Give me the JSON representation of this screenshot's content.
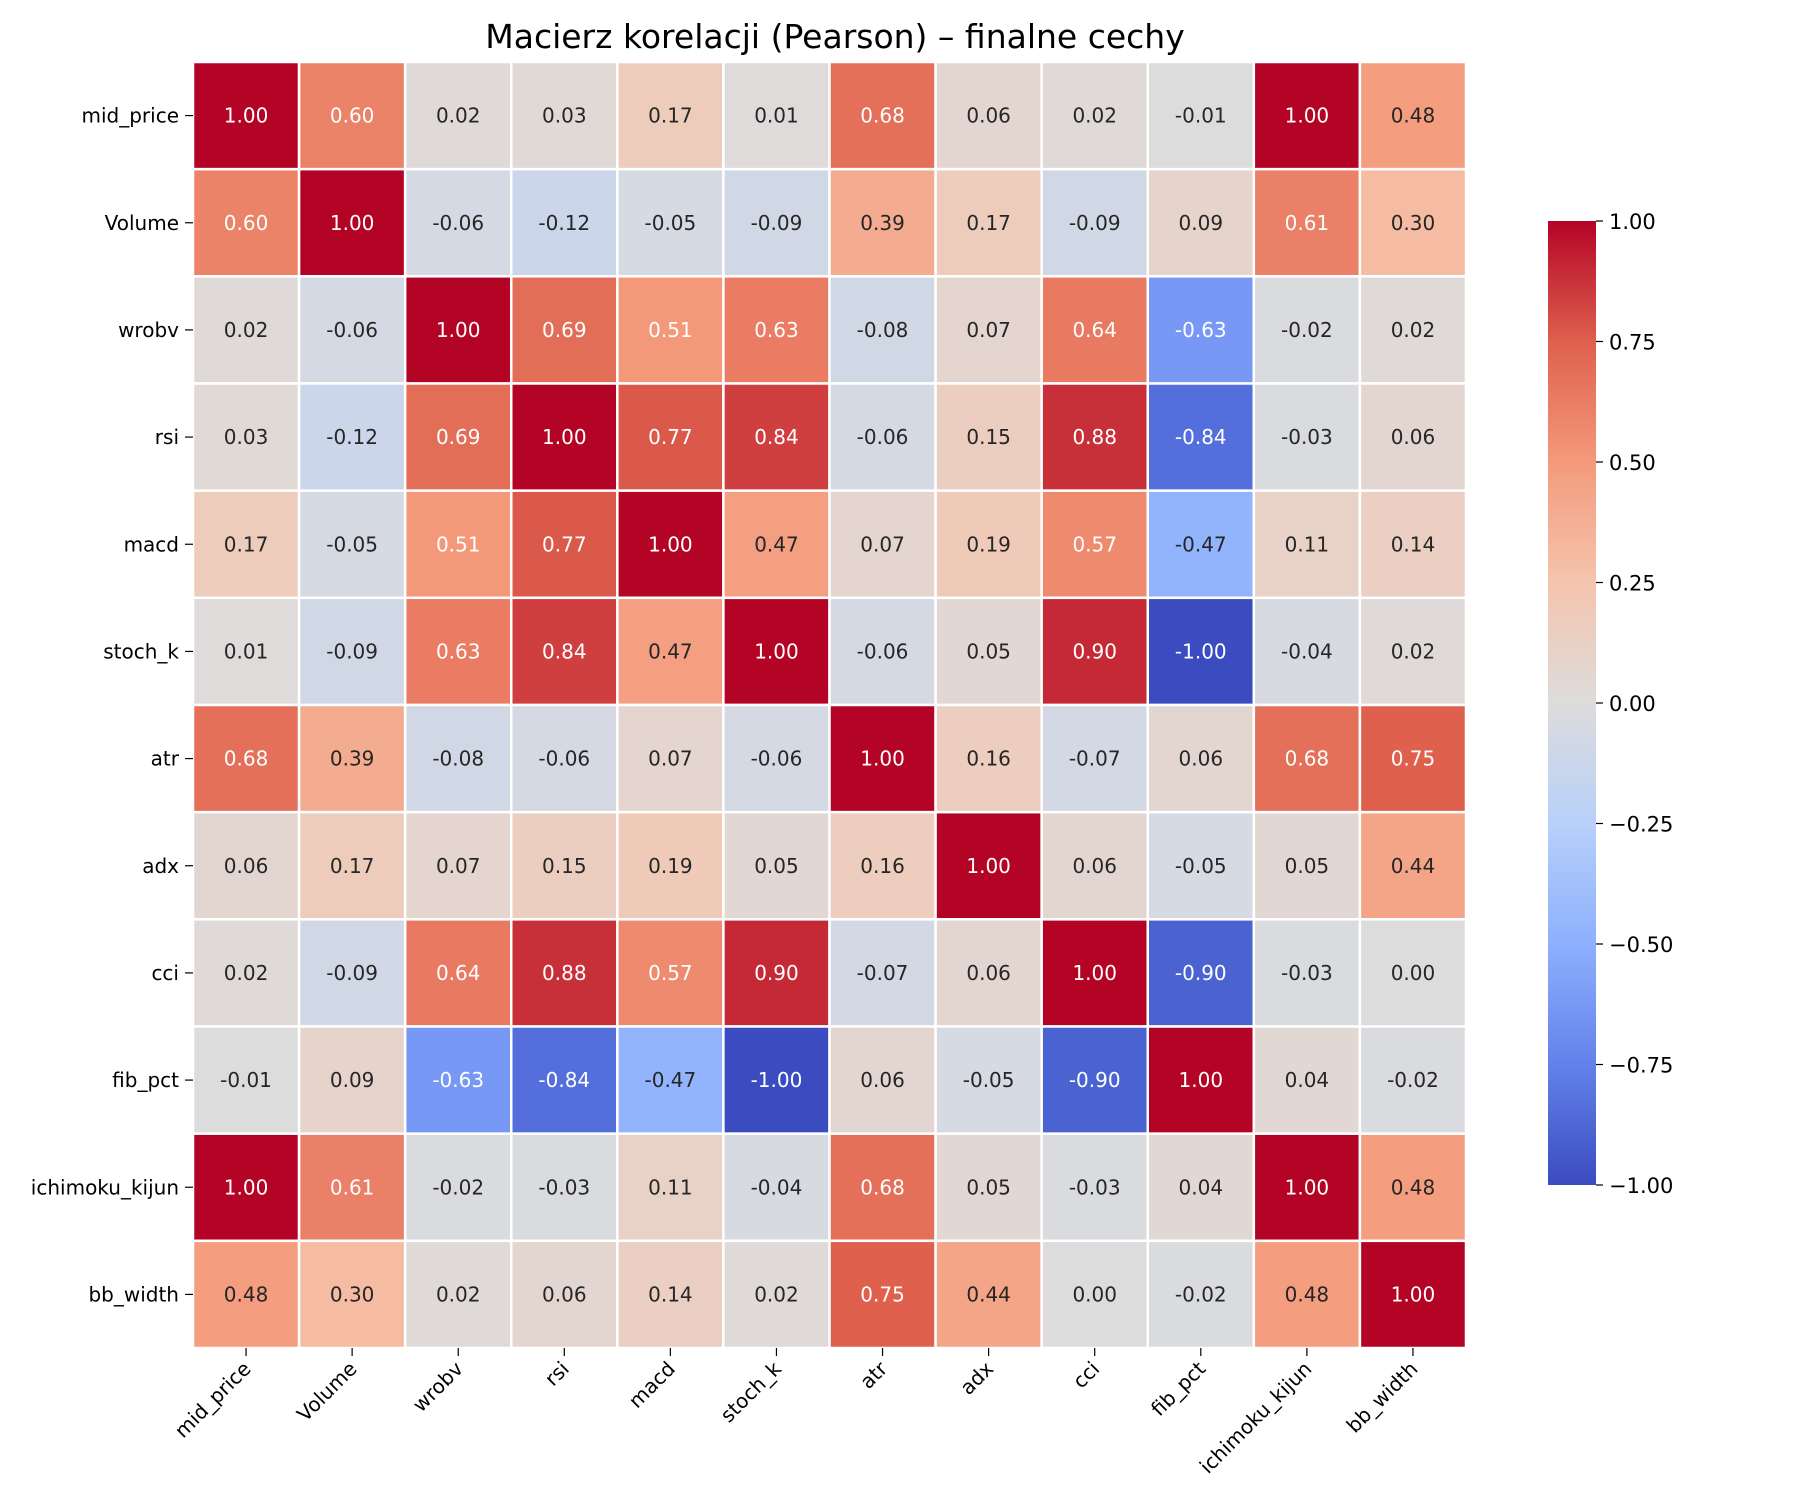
{
  "chart_data": {
    "type": "heatmap",
    "title": "Macierz korelacji (Pearson) – finalne cechy",
    "labels": [
      "mid_price",
      "Volume",
      "wrobv",
      "rsi",
      "macd",
      "stoch_k",
      "atr",
      "adx",
      "cci",
      "fib_pct",
      "ichimoku_kijun",
      "bb_width"
    ],
    "values": [
      [
        1.0,
        0.6,
        0.02,
        0.03,
        0.17,
        0.01,
        0.68,
        0.06,
        0.02,
        -0.01,
        1.0,
        0.48
      ],
      [
        0.6,
        1.0,
        -0.06,
        -0.12,
        -0.05,
        -0.09,
        0.39,
        0.17,
        -0.09,
        0.09,
        0.61,
        0.3
      ],
      [
        0.02,
        -0.06,
        1.0,
        0.69,
        0.51,
        0.63,
        -0.08,
        0.07,
        0.64,
        -0.63,
        -0.02,
        0.02
      ],
      [
        0.03,
        -0.12,
        0.69,
        1.0,
        0.77,
        0.84,
        -0.06,
        0.15,
        0.88,
        -0.84,
        -0.03,
        0.06
      ],
      [
        0.17,
        -0.05,
        0.51,
        0.77,
        1.0,
        0.47,
        0.07,
        0.19,
        0.57,
        -0.47,
        0.11,
        0.14
      ],
      [
        0.01,
        -0.09,
        0.63,
        0.84,
        0.47,
        1.0,
        -0.06,
        0.05,
        0.9,
        -1.0,
        -0.04,
        0.02
      ],
      [
        0.68,
        0.39,
        -0.08,
        -0.06,
        0.07,
        -0.06,
        1.0,
        0.16,
        -0.07,
        0.06,
        0.68,
        0.75
      ],
      [
        0.06,
        0.17,
        0.07,
        0.15,
        0.19,
        0.05,
        0.16,
        1.0,
        0.06,
        -0.05,
        0.05,
        0.44
      ],
      [
        0.02,
        -0.09,
        0.64,
        0.88,
        0.57,
        0.9,
        -0.07,
        0.06,
        1.0,
        -0.9,
        -0.03,
        0.0
      ],
      [
        -0.01,
        0.09,
        -0.63,
        -0.84,
        -0.47,
        -1.0,
        0.06,
        -0.05,
        -0.9,
        1.0,
        0.04,
        -0.02
      ],
      [
        1.0,
        0.61,
        -0.02,
        -0.03,
        0.11,
        -0.04,
        0.68,
        0.05,
        -0.03,
        0.04,
        1.0,
        0.48
      ],
      [
        0.48,
        0.3,
        0.02,
        0.06,
        0.14,
        0.02,
        0.75,
        0.44,
        0.0,
        -0.02,
        0.48,
        1.0
      ]
    ],
    "colormap": "coolwarm",
    "vmin": -1.0,
    "vmax": 1.0,
    "colorbar_ticks": [
      "1.00",
      "0.75",
      "0.50",
      "0.25",
      "0.00",
      "−0.25",
      "−0.50",
      "−0.75",
      "−1.00"
    ],
    "colorbar_tick_values": [
      1.0,
      0.75,
      0.5,
      0.25,
      0.0,
      -0.25,
      -0.5,
      -0.75,
      -1.0
    ],
    "annotation_format": "2 decimals",
    "grid": false,
    "legend": "colorbar-right"
  }
}
